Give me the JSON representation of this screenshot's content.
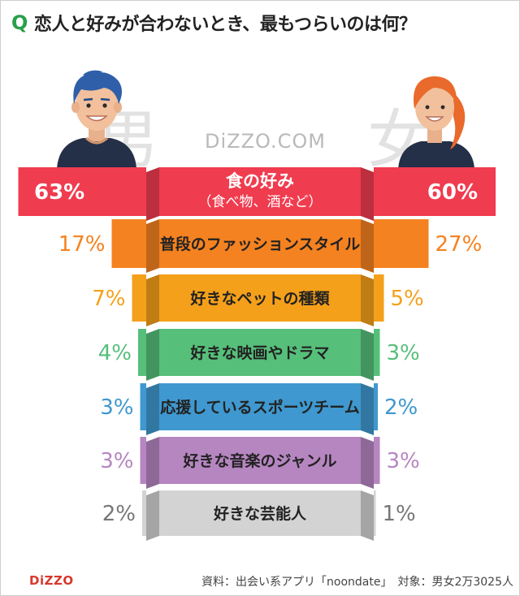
{
  "header": {
    "q_mark": "Q",
    "title": "恋人と好みが合わないとき、最もつらいのは何？"
  },
  "brand": {
    "watermark": "DiZZO.COM",
    "logo": "DiZZO"
  },
  "labels": {
    "male_kanji": "男",
    "female_kanji": "女"
  },
  "source_text": "資料：出会い系アプリ「noondate」　対象：男女2万3025人",
  "colors": {
    "title_q": "#27a04a",
    "bars": [
      "#f03c4f",
      "#f58220",
      "#f5a01a",
      "#56bf7a",
      "#3f98cf",
      "#b686c1",
      "#d3d3d3"
    ]
  },
  "chart_data": {
    "type": "bar",
    "title": "恋人と好みが合わないとき、最もつらいのは何？",
    "categories": [
      [
        "食の好み",
        "（食べ物、酒など）"
      ],
      [
        "普段のファッションスタイル"
      ],
      [
        "好きなペットの種類"
      ],
      [
        "好きな映画やドラマ"
      ],
      [
        "応援しているスポーツチーム"
      ],
      [
        "好きな音楽のジャンル"
      ],
      [
        "好きな芸能人"
      ]
    ],
    "series": [
      {
        "name": "男",
        "values": [
          63,
          17,
          7,
          4,
          3,
          3,
          2
        ]
      },
      {
        "name": "女",
        "values": [
          60,
          27,
          5,
          3,
          2,
          3,
          1
        ]
      }
    ],
    "value_suffix": "%"
  }
}
